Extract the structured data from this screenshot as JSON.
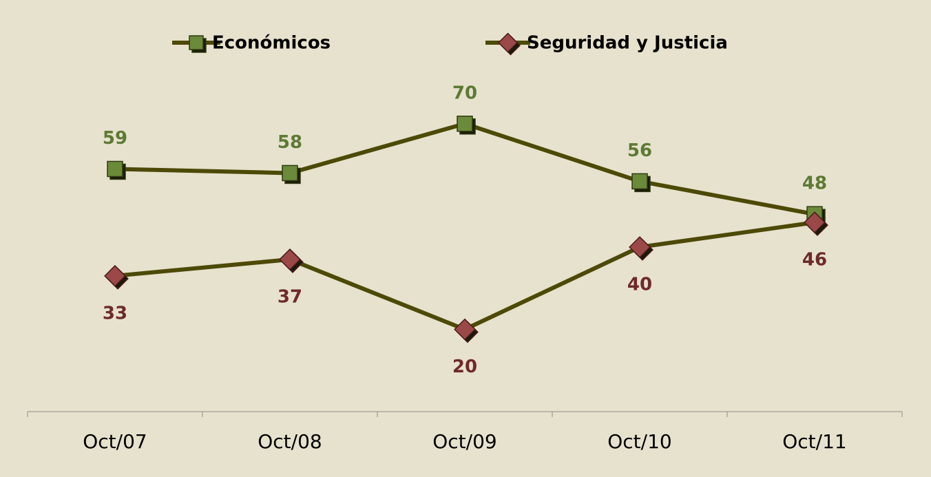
{
  "chart_data": {
    "type": "line",
    "categories": [
      "Oct/07",
      "Oct/08",
      "Oct/09",
      "Oct/10",
      "Oct/11"
    ],
    "series": [
      {
        "name": "Económicos",
        "color": "#6b8a3a",
        "label_color": "#5d7a35",
        "marker": "square",
        "values": [
          59,
          58,
          70,
          56,
          48
        ]
      },
      {
        "name": "Seguridad y Justicia",
        "color": "#9a4848",
        "label_color": "#6e2a2a",
        "marker": "diamond",
        "values": [
          33,
          37,
          20,
          40,
          46
        ]
      }
    ],
    "line_color": "#4d4a08",
    "ylim": [
      0,
      80
    ],
    "legend": "top"
  }
}
